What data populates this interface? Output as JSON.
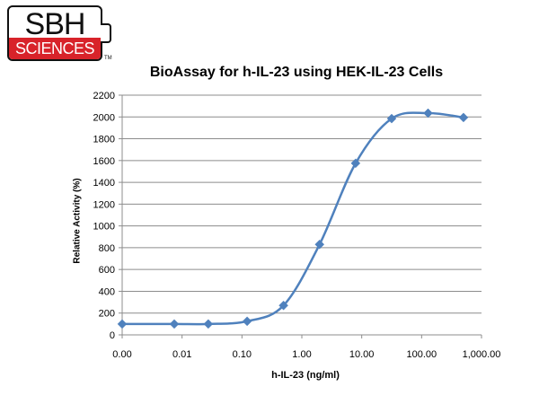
{
  "logo": {
    "top": "SBH",
    "bottom": "SCIENCES",
    "tm": "TM"
  },
  "chart_data": {
    "type": "line",
    "title": "BioAssay for h-IL-23 using HEK-IL-23 Cells",
    "xlabel": "h-IL-23 (ng/ml)",
    "ylabel": "Relative Activity (%)",
    "x_scale": "log",
    "x_ticks": [
      "0.00",
      "0.01",
      "0.10",
      "1.00",
      "10.00",
      "100.00",
      "1,000.00"
    ],
    "y_ticks": [
      0,
      200,
      400,
      600,
      800,
      1000,
      1200,
      1400,
      1600,
      1800,
      2000,
      2200
    ],
    "ylim": [
      0,
      2200
    ],
    "grid": true,
    "legend": "none",
    "marker": "diamond",
    "smooth": true,
    "series": [
      {
        "color": "#4f81bd",
        "x": [
          0.001,
          0.00741,
          0.0274,
          0.122,
          0.494,
          1.976,
          7.9,
          31.6,
          128,
          500
        ],
        "y": [
          100,
          100,
          100,
          125,
          270,
          830,
          1575,
          1985,
          2035,
          1995
        ]
      }
    ]
  }
}
